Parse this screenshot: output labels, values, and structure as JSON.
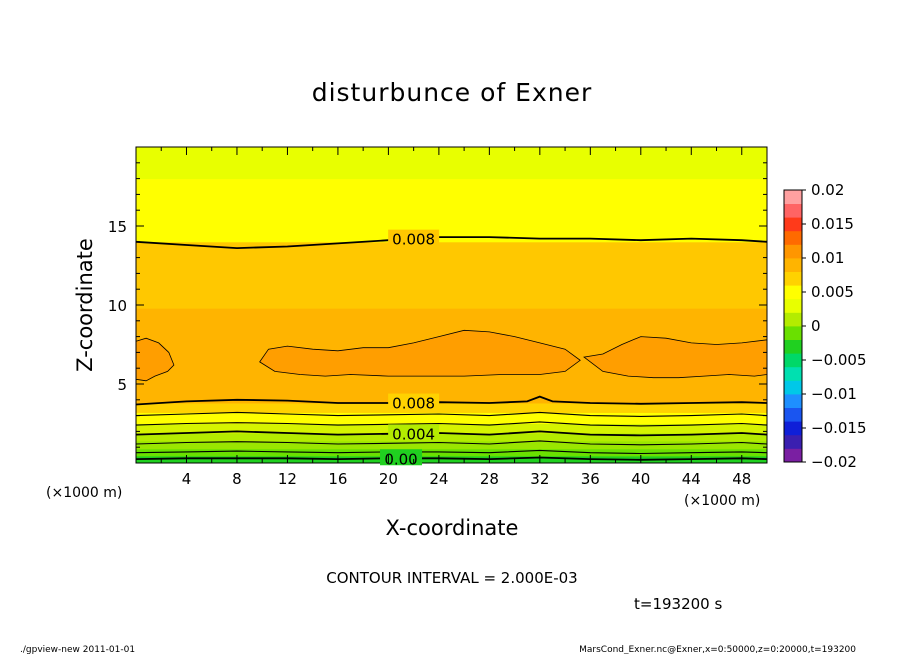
{
  "chart_data": {
    "type": "contour",
    "title": "disturbunce of Exner",
    "xlabel": "X-coordinate",
    "ylabel": "Z-coordinate",
    "x_unit": "(×1000 m)",
    "y_unit": "(×1000 m)",
    "xlim": [
      0,
      50
    ],
    "ylim": [
      0,
      20
    ],
    "x_ticks": [
      4,
      8,
      12,
      16,
      20,
      24,
      28,
      32,
      36,
      40,
      44,
      48
    ],
    "y_ticks": [
      5,
      10,
      15
    ],
    "contour_interval_text": "CONTOUR INTERVAL = 2.000E-03",
    "time_text": "t=193200 s",
    "contour_labels": [
      "0.008",
      "0.008",
      "0.004",
      "0.00"
    ],
    "colorbar": {
      "min": -0.02,
      "max": 0.02,
      "tick_labels": [
        "0.02",
        "0.015",
        "0.01",
        "0.005",
        "0",
        "−0.005",
        "−0.01",
        "−0.015",
        "−0.02"
      ],
      "colors": [
        "#7a1fa2",
        "#3a1fb0",
        "#0f1fd8",
        "#1a55f0",
        "#1e8fff",
        "#00c8e8",
        "#00e0b0",
        "#00d868",
        "#20d020",
        "#6ae000",
        "#b4ec00",
        "#e8ff00",
        "#ffff00",
        "#ffd200",
        "#ffb400",
        "#ff9600",
        "#ff6a00",
        "#ff3a1a",
        "#ff6464",
        "#ffa0a0"
      ]
    },
    "fill_bands": [
      {
        "z": [
          0,
          0.45
        ],
        "color": "#20d020"
      },
      {
        "z": [
          0.45,
          0.9
        ],
        "color": "#6ae000"
      },
      {
        "z": [
          0.9,
          1.4
        ],
        "color": "#9ae600"
      },
      {
        "z": [
          1.4,
          1.9
        ],
        "color": "#b4ec00"
      },
      {
        "z": [
          1.9,
          2.5
        ],
        "color": "#d6f400"
      },
      {
        "z": [
          2.5,
          3.2
        ],
        "color": "#ffff00"
      },
      {
        "z": [
          3.2,
          3.8
        ],
        "color": "#ffd200"
      },
      {
        "z": [
          3.8,
          9.8
        ],
        "color": "#ffb400"
      },
      {
        "z": [
          9.8,
          14.0
        ],
        "color": "#ffc800"
      },
      {
        "z": [
          14.0,
          18.0
        ],
        "color": "#ffff00"
      },
      {
        "z": [
          18.0,
          20.0
        ],
        "color": "#e8ff00"
      }
    ],
    "orange_patches": [
      {
        "x": [
          0,
          0.8,
          1.5,
          2.5,
          3.0,
          2.6,
          1.8,
          0.8,
          0
        ],
        "z": [
          5.3,
          5.2,
          5.5,
          5.8,
          6.2,
          7.0,
          7.6,
          7.9,
          7.7
        ]
      },
      {
        "x": [
          9.8,
          11,
          13,
          15,
          17,
          20,
          23,
          26,
          29,
          32,
          34,
          35.2,
          34,
          32,
          30,
          28,
          26,
          24,
          22,
          20,
          18,
          16,
          14,
          12,
          10.5,
          9.8
        ],
        "z": [
          6.4,
          5.8,
          5.6,
          5.5,
          5.6,
          5.5,
          5.5,
          5.5,
          5.6,
          5.6,
          5.8,
          6.5,
          7.2,
          7.6,
          8.0,
          8.3,
          8.4,
          8.0,
          7.6,
          7.3,
          7.3,
          7.1,
          7.2,
          7.4,
          7.2,
          6.4
        ]
      },
      {
        "x": [
          35.5,
          37,
          39,
          41,
          43,
          45,
          47,
          49,
          50,
          50,
          48,
          46,
          44,
          42,
          40,
          38.5,
          37,
          35.5
        ],
        "z": [
          6.7,
          5.8,
          5.5,
          5.4,
          5.4,
          5.5,
          5.6,
          5.5,
          5.6,
          7.8,
          7.6,
          7.5,
          7.6,
          7.9,
          8.0,
          7.5,
          6.9,
          6.7
        ]
      }
    ],
    "contour_lines": [
      {
        "label": "0.008",
        "x": [
          0,
          4,
          8,
          12,
          16,
          20,
          24,
          28,
          32,
          36,
          40,
          44,
          48,
          50
        ],
        "z": [
          14.0,
          13.8,
          13.6,
          13.7,
          13.9,
          14.1,
          14.3,
          14.3,
          14.2,
          14.2,
          14.1,
          14.2,
          14.1,
          14.0
        ]
      },
      {
        "label": "0.008",
        "x": [
          0,
          4,
          8,
          12,
          16,
          20,
          24,
          28,
          31,
          32,
          33,
          36,
          40,
          44,
          48,
          50
        ],
        "z": [
          3.7,
          3.9,
          4.0,
          3.95,
          3.8,
          3.8,
          3.85,
          3.8,
          3.9,
          4.2,
          3.9,
          3.8,
          3.75,
          3.8,
          3.85,
          3.8
        ]
      },
      {
        "label": "",
        "x": [
          0,
          4,
          8,
          12,
          16,
          20,
          24,
          28,
          32,
          36,
          40,
          44,
          48,
          50
        ],
        "z": [
          3.0,
          3.1,
          3.2,
          3.1,
          3.0,
          3.05,
          3.1,
          3.0,
          3.2,
          3.0,
          2.95,
          3.0,
          3.1,
          3.0
        ]
      },
      {
        "label": "",
        "x": [
          0,
          4,
          8,
          12,
          16,
          20,
          24,
          28,
          32,
          36,
          40,
          44,
          48,
          50
        ],
        "z": [
          2.4,
          2.5,
          2.55,
          2.5,
          2.4,
          2.45,
          2.5,
          2.4,
          2.6,
          2.4,
          2.35,
          2.4,
          2.5,
          2.4
        ]
      },
      {
        "label": "0.004",
        "x": [
          0,
          4,
          8,
          12,
          16,
          20,
          24,
          28,
          32,
          36,
          40,
          44,
          48,
          50
        ],
        "z": [
          1.8,
          1.9,
          2.0,
          1.9,
          1.8,
          1.85,
          1.9,
          1.8,
          2.0,
          1.8,
          1.75,
          1.8,
          1.9,
          1.8
        ]
      },
      {
        "label": "",
        "x": [
          0,
          4,
          8,
          12,
          16,
          20,
          24,
          28,
          32,
          36,
          40,
          44,
          48,
          50
        ],
        "z": [
          1.2,
          1.3,
          1.35,
          1.3,
          1.2,
          1.25,
          1.3,
          1.2,
          1.4,
          1.2,
          1.15,
          1.2,
          1.3,
          1.2
        ]
      },
      {
        "label": "",
        "x": [
          0,
          4,
          8,
          12,
          16,
          20,
          24,
          28,
          32,
          36,
          40,
          44,
          48,
          50
        ],
        "z": [
          0.65,
          0.7,
          0.75,
          0.7,
          0.65,
          0.7,
          0.7,
          0.65,
          0.8,
          0.65,
          0.6,
          0.65,
          0.7,
          0.65
        ]
      },
      {
        "label": "0.00",
        "x": [
          0,
          4,
          8,
          12,
          16,
          20,
          24,
          28,
          32,
          36,
          40,
          44,
          48,
          50
        ],
        "z": [
          0.25,
          0.3,
          0.3,
          0.3,
          0.25,
          0.3,
          0.3,
          0.25,
          0.35,
          0.25,
          0.2,
          0.25,
          0.3,
          0.25
        ]
      }
    ],
    "footer_left": "./gpview-new   2011-01-01",
    "footer_right": "MarsCond_Exner.nc@Exner,x=0:50000,z=0:20000,t=193200"
  }
}
